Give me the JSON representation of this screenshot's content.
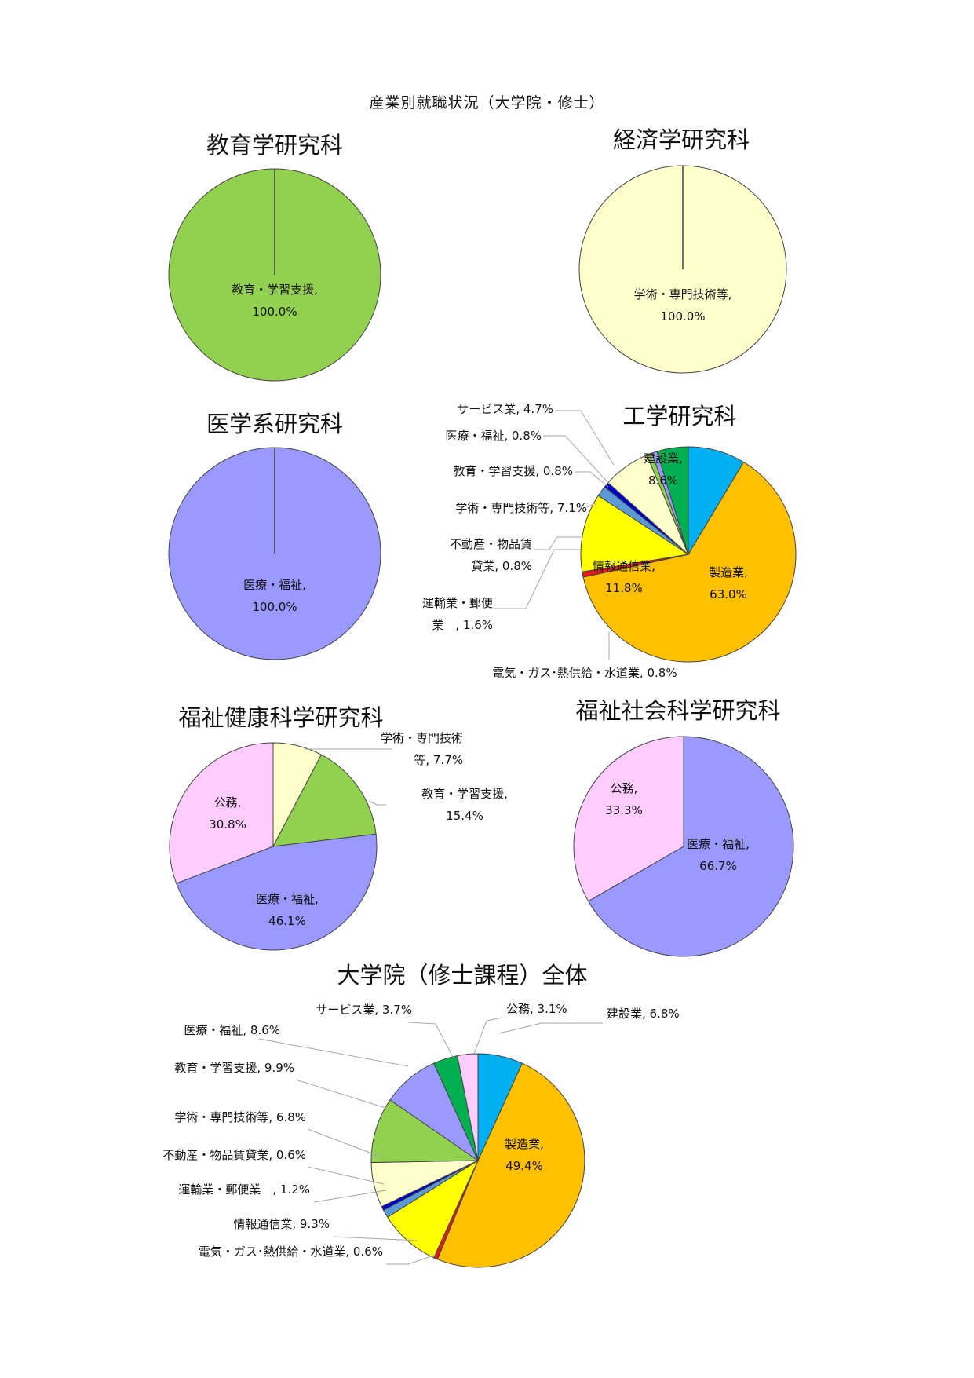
{
  "page_title": "産業別就職状況（大学院・修士）",
  "chart_data": [
    {
      "type": "pie",
      "title": "教育学研究科",
      "slices": [
        {
          "label": "教育・学習支援",
          "value": 100.0,
          "color": "#92d050",
          "display": [
            "教育・学習支援,",
            "100.0%"
          ]
        }
      ]
    },
    {
      "type": "pie",
      "title": "経済学研究科",
      "slices": [
        {
          "label": "学術・専門技術等",
          "value": 100.0,
          "color": "#ffffcc",
          "display": [
            "学術・専門技術等,",
            "100.0%"
          ]
        }
      ]
    },
    {
      "type": "pie",
      "title": "医学系研究科",
      "slices": [
        {
          "label": "医療・福祉",
          "value": 100.0,
          "color": "#9999ff",
          "display": [
            "医療・福祉,",
            "100.0%"
          ]
        }
      ]
    },
    {
      "type": "pie",
      "title": "工学研究科",
      "slices": [
        {
          "label": "建設業",
          "value": 8.6,
          "color": "#00b0f0",
          "display": [
            "建設業,",
            "8.6%"
          ]
        },
        {
          "label": "製造業",
          "value": 63.0,
          "color": "#ffc000",
          "display": [
            "製造業,",
            "63.0%"
          ]
        },
        {
          "label": "電気・ガス･熱供給・水道業",
          "value": 0.8,
          "color": "#e31a1c",
          "display": [
            "電気・ガス･熱供給・水道業, 0.8%"
          ]
        },
        {
          "label": "情報通信業",
          "value": 11.8,
          "color": "#ffff00",
          "display": [
            "情報通信業,",
            "11.8%"
          ]
        },
        {
          "label": "運輸業・郵便業",
          "value": 1.6,
          "color": "#5b9bd5",
          "display": [
            "運輸業・郵便",
            "業　, 1.6%"
          ]
        },
        {
          "label": "不動産・物品賃貸業",
          "value": 0.8,
          "color": "#0000cc",
          "display": [
            "不動産・物品賃",
            "貸業, 0.8%"
          ]
        },
        {
          "label": "学術・専門技術等",
          "value": 7.1,
          "color": "#ffffcc",
          "display": [
            "学術・専門技術等, 7.1%"
          ]
        },
        {
          "label": "教育・学習支援",
          "value": 0.8,
          "color": "#92d050",
          "display": [
            "教育・学習支援, 0.8%"
          ]
        },
        {
          "label": "医療・福祉",
          "value": 0.8,
          "color": "#9999ff",
          "display": [
            "医療・福祉, 0.8%"
          ]
        },
        {
          "label": "サービス業",
          "value": 4.7,
          "color": "#00b050",
          "display": [
            "サービス業, 4.7%"
          ]
        }
      ]
    },
    {
      "type": "pie",
      "title": "福祉健康科学研究科",
      "slices": [
        {
          "label": "学術・専門技術等",
          "value": 7.7,
          "color": "#ffffcc",
          "display": [
            "学術・専門技術",
            "等, 7.7%"
          ]
        },
        {
          "label": "教育・学習支援",
          "value": 15.4,
          "color": "#92d050",
          "display": [
            "教育・学習支援,",
            "15.4%"
          ]
        },
        {
          "label": "医療・福祉",
          "value": 46.1,
          "color": "#9999ff",
          "display": [
            "医療・福祉,",
            "46.1%"
          ]
        },
        {
          "label": "公務",
          "value": 30.8,
          "color": "#ffccff",
          "display": [
            "公務,",
            "30.8%"
          ]
        }
      ]
    },
    {
      "type": "pie",
      "title": "福祉社会科学研究科",
      "slices": [
        {
          "label": "医療・福祉",
          "value": 66.7,
          "color": "#9999ff",
          "display": [
            "医療・福祉,",
            "66.7%"
          ]
        },
        {
          "label": "公務",
          "value": 33.3,
          "color": "#ffccff",
          "display": [
            "公務,",
            "33.3%"
          ]
        }
      ]
    },
    {
      "type": "pie",
      "title": "大学院（修士課程）全体",
      "slices": [
        {
          "label": "建設業",
          "value": 6.8,
          "color": "#00b0f0",
          "display": [
            "建設業, 6.8%"
          ]
        },
        {
          "label": "製造業",
          "value": 49.4,
          "color": "#ffc000",
          "display": [
            "製造業,",
            "49.4%"
          ]
        },
        {
          "label": "電気・ガス･熱供給・水道業",
          "value": 0.6,
          "color": "#e31a1c",
          "display": [
            "電気・ガス･熱供給・水道業, 0.6%"
          ]
        },
        {
          "label": "情報通信業",
          "value": 9.3,
          "color": "#ffff00",
          "display": [
            "情報通信業, 9.3%"
          ]
        },
        {
          "label": "運輸業・郵便業",
          "value": 1.2,
          "color": "#5b9bd5",
          "display": [
            "運輸業・郵便業　, 1.2%"
          ]
        },
        {
          "label": "不動産・物品賃貸業",
          "value": 0.6,
          "color": "#0000cc",
          "display": [
            "不動産・物品賃貸業, 0.6%"
          ]
        },
        {
          "label": "学術・専門技術等",
          "value": 6.8,
          "color": "#ffffcc",
          "display": [
            "学術・専門技術等, 6.8%"
          ]
        },
        {
          "label": "教育・学習支援",
          "value": 9.9,
          "color": "#92d050",
          "display": [
            "教育・学習支援, 9.9%"
          ]
        },
        {
          "label": "医療・福祉",
          "value": 8.6,
          "color": "#9999ff",
          "display": [
            "医療・福祉, 8.6%"
          ]
        },
        {
          "label": "サービス業",
          "value": 3.7,
          "color": "#00b050",
          "display": [
            "サービス業, 3.7%"
          ]
        },
        {
          "label": "公務",
          "value": 3.1,
          "color": "#ffccff",
          "display": [
            "公務, 3.1%"
          ]
        }
      ]
    }
  ]
}
